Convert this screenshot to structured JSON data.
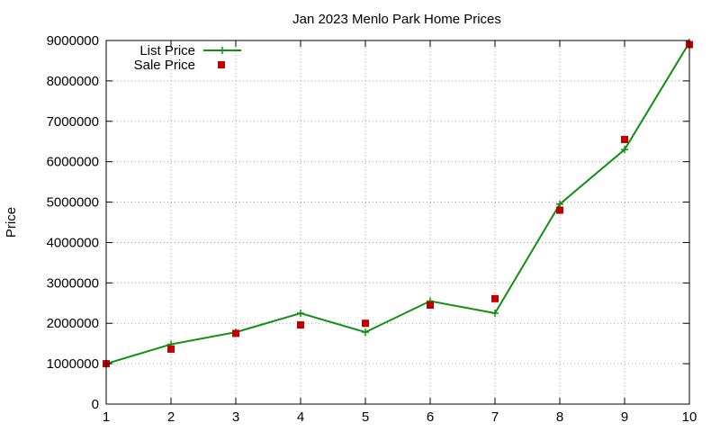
{
  "chart_data": {
    "type": "line",
    "title": "Jan 2023 Menlo Park Home Prices",
    "xlabel": "",
    "ylabel": "Price",
    "x": [
      1,
      2,
      3,
      4,
      5,
      6,
      7,
      8,
      9,
      10
    ],
    "xlim": [
      1,
      10
    ],
    "ylim": [
      0,
      9000000
    ],
    "xticks": [
      "1",
      "2",
      "3",
      "4",
      "5",
      "6",
      "7",
      "8",
      "9",
      "10"
    ],
    "yticks": [
      "0",
      "1000000",
      "2000000",
      "3000000",
      "4000000",
      "5000000",
      "6000000",
      "7000000",
      "8000000",
      "9000000"
    ],
    "grid": true,
    "legend_position": "top-left",
    "series": [
      {
        "name": "List Price",
        "style": "line-with-plus-markers",
        "color": "#109010",
        "values": [
          1000000,
          1480000,
          1780000,
          2250000,
          1780000,
          2550000,
          2250000,
          4950000,
          6300000,
          8950000
        ]
      },
      {
        "name": "Sale Price",
        "style": "square-markers",
        "color": "#c00000",
        "values": [
          1000000,
          1360000,
          1750000,
          1960000,
          2000000,
          2450000,
          2610000,
          4800000,
          6550000,
          8900000
        ]
      }
    ]
  }
}
